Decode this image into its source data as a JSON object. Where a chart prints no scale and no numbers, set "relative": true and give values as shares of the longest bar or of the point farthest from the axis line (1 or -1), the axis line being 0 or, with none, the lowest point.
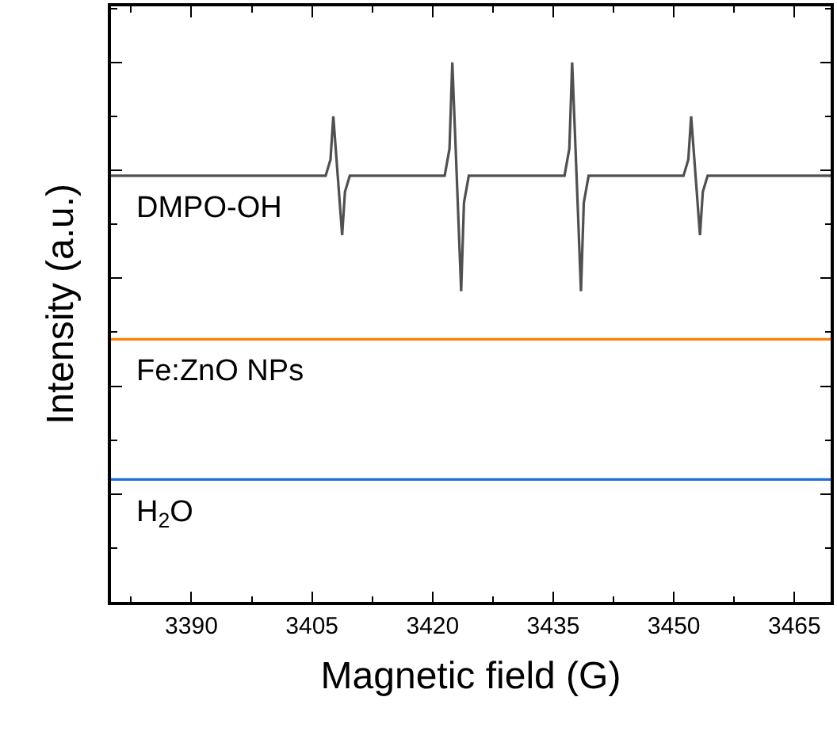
{
  "chart_data": {
    "type": "line",
    "relative": true,
    "xlabel": "Magnetic field (G)",
    "ylabel": "Intensity (a.u.)",
    "xlim": [
      3380,
      3469.5
    ],
    "xticks": [
      3390,
      3405,
      3420,
      3435,
      3450,
      3465
    ],
    "legend": false,
    "marker": "none",
    "line_style": "solid",
    "series": [
      {
        "name": "DMPO-OH",
        "color": "#505050",
        "x": [
          3380,
          3406.7,
          3407.3,
          3407.65,
          3408.2,
          3408.75,
          3409.1,
          3409.7,
          3421.5,
          3422.1,
          3422.45,
          3423.0,
          3423.55,
          3423.9,
          3424.5,
          3436.4,
          3437.0,
          3437.35,
          3437.9,
          3438.45,
          3438.8,
          3439.4,
          3451.2,
          3451.8,
          3452.15,
          3452.7,
          3453.25,
          3453.6,
          3454.2,
          3469.5
        ],
        "values": [
          0.79,
          0.79,
          0.82,
          0.9,
          0.79,
          0.68,
          0.76,
          0.79,
          0.79,
          0.84,
          1.0,
          0.79,
          0.576,
          0.74,
          0.79,
          0.79,
          0.84,
          1.0,
          0.79,
          0.576,
          0.74,
          0.79,
          0.79,
          0.82,
          0.9,
          0.79,
          0.68,
          0.76,
          0.79,
          0.79
        ]
      },
      {
        "name": "Fe:ZnO NPs",
        "color": "#ff8000",
        "x": [
          3380,
          3400,
          3420,
          3440,
          3460,
          3469.5
        ],
        "values": [
          0.487,
          0.487,
          0.487,
          0.487,
          0.487,
          0.487
        ]
      },
      {
        "name": "H$_{2}$O",
        "color": "#1a6fdf",
        "x": [
          3380,
          3400,
          3420,
          3440,
          3460,
          3469.5
        ],
        "values": [
          0.227,
          0.227,
          0.227,
          0.227,
          0.227,
          0.227
        ]
      }
    ]
  }
}
